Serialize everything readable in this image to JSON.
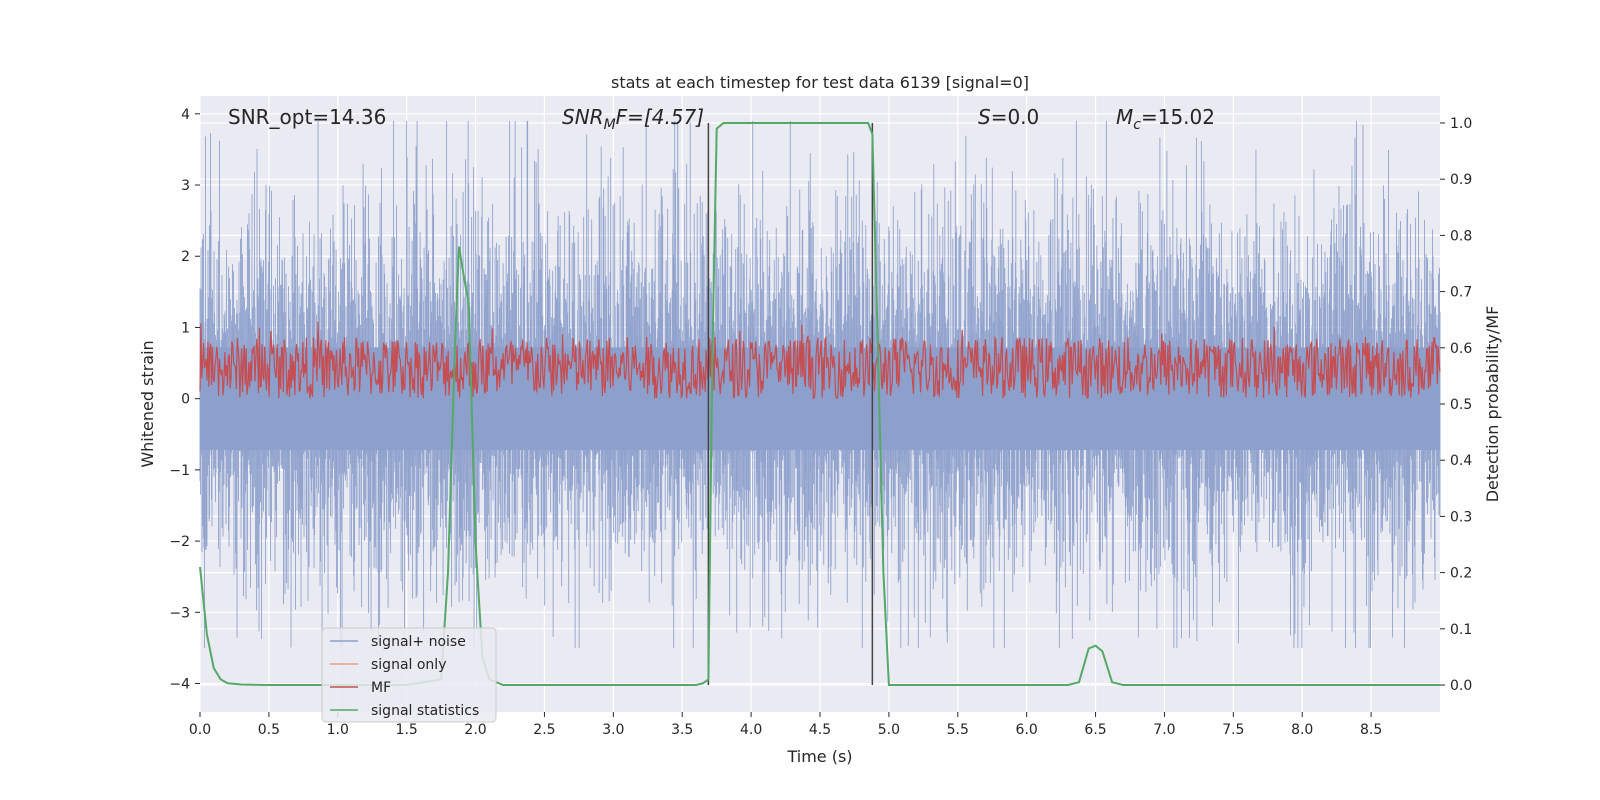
{
  "chart_data": {
    "type": "line",
    "title": "stats at each timestep for test data 6139 [signal=0]",
    "xlabel": "Time (s)",
    "ylabel_left": "Whitened strain",
    "ylabel_right": "Detection probability/MF",
    "xlim": [
      0.0,
      9.0
    ],
    "ylim_left": [
      -4.4,
      4.25
    ],
    "ylim_right": [
      -0.048,
      1.048
    ],
    "xticks": [
      "0.0",
      "0.5",
      "1.0",
      "1.5",
      "2.0",
      "2.5",
      "3.0",
      "3.5",
      "4.0",
      "4.5",
      "5.0",
      "5.5",
      "6.0",
      "6.5",
      "7.0",
      "7.5",
      "8.0",
      "8.5"
    ],
    "yticks_left": [
      "4",
      "3",
      "2",
      "1",
      "0",
      "−1",
      "−2",
      "−3",
      "−4"
    ],
    "yticks_right": [
      "1.0",
      "0.9",
      "0.8",
      "0.7",
      "0.6",
      "0.5",
      "0.4",
      "0.3",
      "0.2",
      "0.1",
      "0.0"
    ],
    "grid": true,
    "legend_position": "lower-left",
    "annotations": {
      "snr_opt": "SNR_opt=14.36",
      "snr_mf_label": "SNR",
      "snr_mf_sub": "M",
      "snr_mf_rest": "F=[4.57]",
      "s_label": "S",
      "s_rest": "=0.0",
      "mc_label": "M",
      "mc_sub": "c",
      "mc_rest": "=15.02"
    },
    "vertical_markers": [
      3.69,
      4.88
    ],
    "series": [
      {
        "name": "signal+ noise",
        "color": "#8da0cb",
        "axis": "left",
        "style": "noise",
        "amplitude_range": [
          -3.5,
          3.9
        ]
      },
      {
        "name": "signal only",
        "color": "#e8a08a",
        "axis": "left",
        "values": []
      },
      {
        "name": "MF",
        "color": "#c44e52",
        "axis": "right",
        "style": "band",
        "range": [
          0.51,
          0.62
        ]
      },
      {
        "name": "signal statistics",
        "color": "#55a868",
        "axis": "right",
        "x": [
          0.0,
          0.05,
          0.1,
          0.15,
          0.2,
          0.3,
          0.5,
          1.0,
          1.5,
          1.75,
          1.8,
          1.85,
          1.88,
          1.92,
          1.95,
          2.0,
          2.05,
          2.1,
          2.2,
          2.5,
          3.0,
          3.5,
          3.6,
          3.65,
          3.69,
          3.72,
          3.75,
          3.8,
          4.0,
          4.5,
          4.75,
          4.8,
          4.85,
          4.88,
          4.92,
          4.96,
          5.0,
          5.2,
          5.5,
          6.0,
          6.3,
          6.38,
          6.45,
          6.5,
          6.55,
          6.62,
          6.7,
          7.0,
          8.0,
          9.0
        ],
        "values": [
          0.21,
          0.09,
          0.03,
          0.01,
          0.003,
          0.001,
          0.0,
          0.0,
          0.0,
          0.01,
          0.2,
          0.6,
          0.78,
          0.72,
          0.68,
          0.25,
          0.05,
          0.01,
          0.0,
          0.0,
          0.0,
          0.0,
          0.0,
          0.003,
          0.01,
          0.6,
          0.99,
          1.0,
          1.0,
          1.0,
          1.0,
          1.0,
          1.0,
          0.98,
          0.6,
          0.2,
          0.0,
          0.0,
          0.0,
          0.0,
          0.0,
          0.005,
          0.065,
          0.07,
          0.06,
          0.005,
          0.0,
          0.0,
          0.0,
          0.0
        ]
      }
    ]
  }
}
